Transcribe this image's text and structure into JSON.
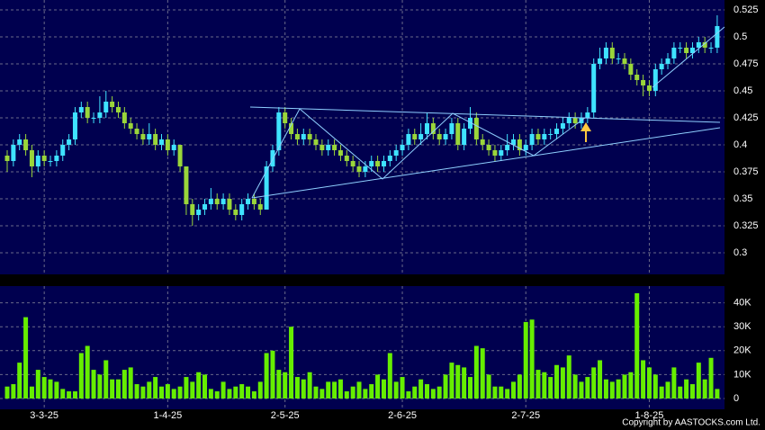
{
  "chart_data": [
    {
      "type": "candlestick",
      "categories": [
        null,
        null,
        null,
        null,
        null,
        null,
        "3-3-25",
        null,
        null,
        null,
        null,
        null,
        null,
        null,
        null,
        null,
        null,
        null,
        null,
        null,
        null,
        null,
        null,
        null,
        null,
        null,
        "1-4-25",
        null,
        null,
        null,
        null,
        null,
        null,
        null,
        null,
        null,
        null,
        null,
        null,
        null,
        null,
        null,
        null,
        null,
        null,
        "2-5-25",
        null,
        null,
        null,
        null,
        null,
        null,
        null,
        null,
        null,
        null,
        null,
        null,
        null,
        null,
        null,
        null,
        null,
        null,
        "2-6-25",
        null,
        null,
        null,
        null,
        null,
        null,
        null,
        null,
        null,
        null,
        null,
        null,
        null,
        null,
        null,
        null,
        null,
        null,
        null,
        "2-7-25",
        null,
        null,
        null,
        null,
        null,
        null,
        null,
        null,
        null,
        null,
        null,
        null,
        null,
        null,
        null,
        null,
        null,
        null,
        null,
        "1-8-25",
        null,
        null,
        null,
        null,
        null,
        null,
        null,
        null,
        null,
        null,
        null
      ],
      "open": [
        0.39,
        0.385,
        0.4,
        0.405,
        0.395,
        0.38,
        0.39,
        0.385,
        0.385,
        0.39,
        0.4,
        0.405,
        0.43,
        0.435,
        0.425,
        0.425,
        0.43,
        0.44,
        0.435,
        0.43,
        0.42,
        0.415,
        0.41,
        0.405,
        0.41,
        0.4,
        0.405,
        0.395,
        0.4,
        0.38,
        0.345,
        0.335,
        0.34,
        0.345,
        0.35,
        0.345,
        0.35,
        0.34,
        0.335,
        0.345,
        0.35,
        0.345,
        0.34,
        0.38,
        0.395,
        0.43,
        0.42,
        0.41,
        0.405,
        0.41,
        0.405,
        0.4,
        0.395,
        0.4,
        0.395,
        0.39,
        0.385,
        0.38,
        0.375,
        0.38,
        0.385,
        0.38,
        0.385,
        0.39,
        0.395,
        0.4,
        0.41,
        0.405,
        0.41,
        0.42,
        0.41,
        0.405,
        0.41,
        0.42,
        0.4,
        0.415,
        0.425,
        0.405,
        0.4,
        0.395,
        0.39,
        0.395,
        0.4,
        0.405,
        0.395,
        0.4,
        0.41,
        0.405,
        0.41,
        0.41,
        0.415,
        0.42,
        0.425,
        0.42,
        0.425,
        0.43,
        0.475,
        0.48,
        0.49,
        0.48,
        0.48,
        0.475,
        0.465,
        0.46,
        0.455,
        0.45,
        0.47,
        0.475,
        0.48,
        0.49,
        0.49,
        0.485,
        0.49,
        0.495,
        0.49,
        0.49
      ],
      "high": [
        0.395,
        0.405,
        0.41,
        0.41,
        0.4,
        0.395,
        0.395,
        0.39,
        0.395,
        0.405,
        0.41,
        0.435,
        0.44,
        0.44,
        0.43,
        0.445,
        0.45,
        0.445,
        0.44,
        0.435,
        0.425,
        0.42,
        0.415,
        0.42,
        0.415,
        0.41,
        0.41,
        0.405,
        0.4,
        0.38,
        0.35,
        0.345,
        0.35,
        0.36,
        0.355,
        0.355,
        0.355,
        0.345,
        0.35,
        0.355,
        0.355,
        0.35,
        0.385,
        0.4,
        0.435,
        0.435,
        0.425,
        0.415,
        0.415,
        0.415,
        0.41,
        0.405,
        0.405,
        0.405,
        0.4,
        0.395,
        0.39,
        0.385,
        0.385,
        0.39,
        0.39,
        0.39,
        0.395,
        0.4,
        0.405,
        0.415,
        0.415,
        0.42,
        0.43,
        0.425,
        0.415,
        0.415,
        0.425,
        0.425,
        0.42,
        0.435,
        0.43,
        0.41,
        0.405,
        0.4,
        0.4,
        0.41,
        0.41,
        0.41,
        0.405,
        0.415,
        0.415,
        0.415,
        0.415,
        0.42,
        0.425,
        0.43,
        0.43,
        0.43,
        0.435,
        0.48,
        0.49,
        0.495,
        0.495,
        0.485,
        0.485,
        0.48,
        0.47,
        0.465,
        0.46,
        0.475,
        0.48,
        0.485,
        0.495,
        0.495,
        0.495,
        0.495,
        0.5,
        0.5,
        0.495,
        0.52
      ],
      "low": [
        0.375,
        0.38,
        0.395,
        0.39,
        0.37,
        0.375,
        0.38,
        0.38,
        0.38,
        0.385,
        0.395,
        0.4,
        0.425,
        0.42,
        0.42,
        0.42,
        0.425,
        0.43,
        0.425,
        0.415,
        0.41,
        0.405,
        0.4,
        0.4,
        0.395,
        0.395,
        0.39,
        0.39,
        0.375,
        0.335,
        0.325,
        0.33,
        0.335,
        0.34,
        0.34,
        0.34,
        0.335,
        0.33,
        0.33,
        0.34,
        0.34,
        0.335,
        0.34,
        0.375,
        0.39,
        0.415,
        0.405,
        0.4,
        0.4,
        0.4,
        0.395,
        0.39,
        0.39,
        0.39,
        0.385,
        0.38,
        0.375,
        0.37,
        0.37,
        0.375,
        0.375,
        0.375,
        0.38,
        0.385,
        0.39,
        0.395,
        0.4,
        0.4,
        0.405,
        0.405,
        0.4,
        0.4,
        0.405,
        0.395,
        0.395,
        0.41,
        0.4,
        0.395,
        0.39,
        0.385,
        0.385,
        0.39,
        0.395,
        0.39,
        0.39,
        0.395,
        0.4,
        0.4,
        0.405,
        0.405,
        0.41,
        0.415,
        0.415,
        0.415,
        0.42,
        0.425,
        0.47,
        0.475,
        0.475,
        0.475,
        0.47,
        0.46,
        0.455,
        0.445,
        0.445,
        0.445,
        0.465,
        0.47,
        0.475,
        0.485,
        0.48,
        0.48,
        0.485,
        0.485,
        0.485,
        0.485
      ],
      "close": [
        0.385,
        0.4,
        0.405,
        0.395,
        0.38,
        0.39,
        0.385,
        0.385,
        0.39,
        0.4,
        0.405,
        0.43,
        0.435,
        0.425,
        0.425,
        0.43,
        0.44,
        0.435,
        0.43,
        0.42,
        0.415,
        0.41,
        0.405,
        0.41,
        0.4,
        0.405,
        0.395,
        0.4,
        0.38,
        0.345,
        0.335,
        0.34,
        0.345,
        0.35,
        0.345,
        0.35,
        0.34,
        0.335,
        0.345,
        0.35,
        0.345,
        0.34,
        0.38,
        0.395,
        0.43,
        0.42,
        0.41,
        0.405,
        0.41,
        0.405,
        0.4,
        0.395,
        0.4,
        0.395,
        0.39,
        0.385,
        0.38,
        0.375,
        0.38,
        0.385,
        0.38,
        0.385,
        0.39,
        0.395,
        0.4,
        0.41,
        0.405,
        0.41,
        0.42,
        0.41,
        0.405,
        0.41,
        0.42,
        0.4,
        0.415,
        0.425,
        0.405,
        0.4,
        0.395,
        0.39,
        0.395,
        0.4,
        0.405,
        0.395,
        0.4,
        0.41,
        0.405,
        0.41,
        0.41,
        0.415,
        0.42,
        0.425,
        0.42,
        0.425,
        0.43,
        0.475,
        0.48,
        0.49,
        0.48,
        0.48,
        0.475,
        0.465,
        0.46,
        0.455,
        0.45,
        0.47,
        0.475,
        0.48,
        0.49,
        0.49,
        0.485,
        0.49,
        0.495,
        0.49,
        0.49,
        0.51
      ],
      "up_color": "#3fe3ff",
      "down_color": "#9ad63a",
      "ylim": [
        0.28,
        0.53
      ],
      "yticks": [
        0.3,
        0.325,
        0.35,
        0.375,
        0.4,
        0.425,
        0.45,
        0.475,
        0.5,
        0.525
      ],
      "grid": true
    },
    {
      "type": "bar",
      "values": [
        5000,
        6000,
        15000,
        34000,
        5000,
        12000,
        9000,
        8000,
        7000,
        4000,
        3000,
        3000,
        19000,
        22000,
        12000,
        10000,
        16000,
        8000,
        8000,
        12000,
        13000,
        6000,
        5000,
        7000,
        9000,
        5000,
        6000,
        4000,
        5000,
        9000,
        7000,
        11000,
        10000,
        4000,
        3000,
        7000,
        4000,
        5000,
        6000,
        5000,
        3000,
        7000,
        19000,
        20000,
        12000,
        11000,
        30000,
        9000,
        8000,
        11000,
        5000,
        4000,
        7000,
        7000,
        8000,
        3000,
        5000,
        7000,
        4000,
        6000,
        10000,
        8000,
        19000,
        7000,
        9000,
        3000,
        5000,
        8000,
        6000,
        4000,
        5000,
        10000,
        15000,
        14000,
        13000,
        9000,
        22000,
        21000,
        10000,
        5000,
        5000,
        4000,
        7000,
        10000,
        32000,
        33000,
        12000,
        11000,
        9000,
        14000,
        13000,
        18000,
        10000,
        7000,
        9000,
        13000,
        16000,
        8000,
        7000,
        8000,
        10000,
        11000,
        44000,
        16000,
        13000,
        10000,
        5000,
        7000,
        13000,
        5000,
        8000,
        6000,
        15000,
        8000,
        17000,
        4000
      ],
      "color": "#66ee00",
      "ylim": [
        0,
        47000
      ],
      "yticks": [
        0,
        {
          "value": 10000,
          "label": "10K"
        },
        {
          "value": 20000,
          "label": "20K"
        },
        {
          "value": 30000,
          "label": "30K"
        },
        {
          "value": 40000,
          "label": "40K"
        }
      ],
      "grid": true
    }
  ],
  "copyright": "Copyright by AASTOCKS.com Ltd."
}
